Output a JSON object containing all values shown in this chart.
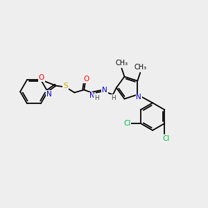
{
  "bg_color": "#eeeeee",
  "bond_color": "#000000",
  "atom_colors": {
    "O": "#ff0000",
    "N": "#0000cc",
    "S": "#ccaa00",
    "Cl": "#00bb44",
    "H": "#444444",
    "C": "#000000"
  }
}
